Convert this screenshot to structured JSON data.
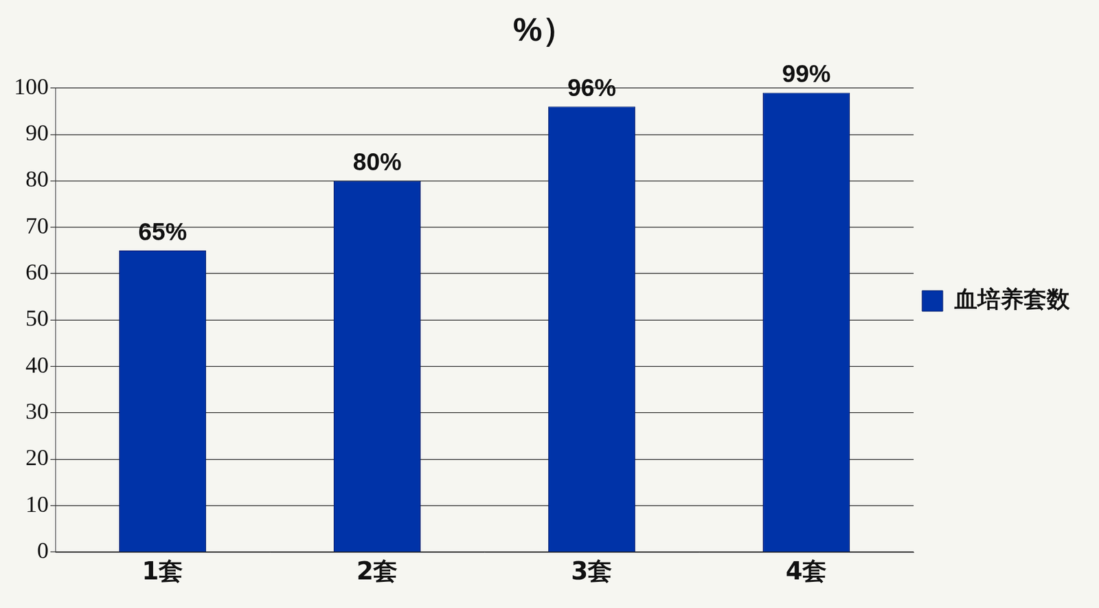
{
  "chart_data": {
    "type": "bar",
    "title": "%）",
    "categories": [
      "1套",
      "2套",
      "3套",
      "4套"
    ],
    "series": [
      {
        "name": "血培养套数",
        "color": "#0033a8",
        "values": [
          65,
          80,
          96,
          99
        ],
        "value_labels": [
          "65%",
          "80%",
          "96%",
          "99%"
        ]
      }
    ],
    "ylim": [
      0,
      100
    ],
    "yticks": [
      0,
      10,
      20,
      30,
      40,
      50,
      60,
      70,
      80,
      90,
      100
    ],
    "grid": true,
    "legend": "right",
    "data_labels": true
  }
}
